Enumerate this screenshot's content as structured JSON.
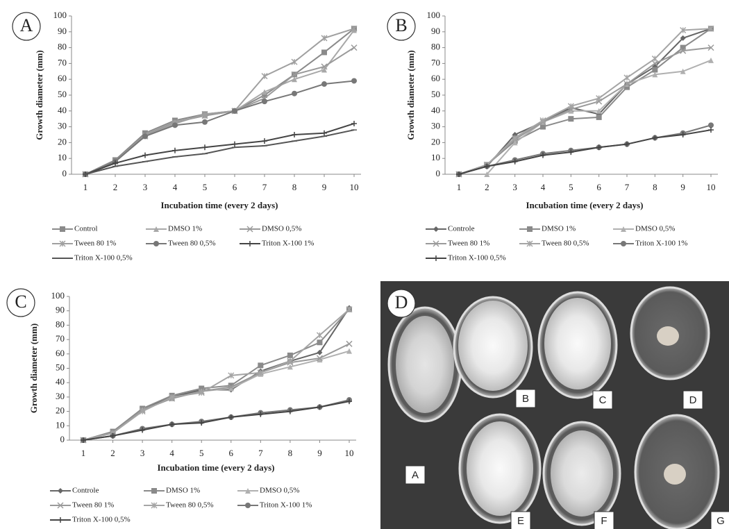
{
  "chart_data": [
    {
      "type": "line",
      "panel_label": "A",
      "y_label": "Growth diameter (mm)",
      "x_label": "Incubation  time (every 2 days)",
      "x": [
        1,
        2,
        3,
        4,
        5,
        6,
        7,
        8,
        9,
        10
      ],
      "xlim": [
        1,
        10
      ],
      "xticks": [
        1,
        2,
        3,
        4,
        5,
        6,
        7,
        8,
        9,
        10
      ],
      "ylim": [
        0,
        100
      ],
      "yticks": [
        0,
        10,
        20,
        30,
        40,
        50,
        60,
        70,
        80,
        90,
        100
      ],
      "series": [
        {
          "name": "Control",
          "color": "#8a8a8a",
          "marker": "square",
          "values": [
            0,
            9,
            26,
            34,
            38,
            40,
            50,
            63,
            77,
            92
          ]
        },
        {
          "name": "DMSO 1%",
          "color": "#a8a8a8",
          "marker": "triangle",
          "values": [
            0,
            8,
            24,
            33,
            37,
            40,
            52,
            60,
            66,
            91
          ]
        },
        {
          "name": "DMSO 0,5%",
          "color": "#9a9a9a",
          "marker": "x",
          "values": [
            0,
            8,
            25,
            33,
            37,
            40,
            48,
            63,
            68,
            80
          ]
        },
        {
          "name": "Tween 80 1%",
          "color": "#a0a0a0",
          "marker": "star",
          "values": [
            0,
            8,
            24,
            32,
            38,
            40,
            62,
            71,
            86,
            92
          ]
        },
        {
          "name": "Tween 80 0,5%",
          "color": "#777777",
          "marker": "circle",
          "values": [
            0,
            8,
            24,
            31,
            33,
            40,
            46,
            51,
            57,
            59
          ]
        },
        {
          "name": "Triton X-100 1%",
          "color": "#444444",
          "marker": "plus",
          "values": [
            0,
            7,
            12,
            15,
            17,
            19,
            21,
            25,
            26,
            32
          ]
        },
        {
          "name": "Triton X-100 0,5%",
          "color": "#555555",
          "marker": "dash",
          "values": [
            0,
            5,
            8,
            11,
            13,
            17,
            18,
            21,
            24,
            28
          ]
        }
      ]
    },
    {
      "type": "line",
      "panel_label": "B",
      "y_label": "Growth diameter (mm)",
      "x_label": "Incubation  time (every 2 days)",
      "x": [
        1,
        2,
        3,
        4,
        5,
        6,
        7,
        8,
        9,
        10
      ],
      "xlim": [
        1,
        10
      ],
      "xticks": [
        1,
        2,
        3,
        4,
        5,
        6,
        7,
        8,
        9,
        10
      ],
      "ylim": [
        0,
        100
      ],
      "yticks": [
        0,
        10,
        20,
        30,
        40,
        50,
        60,
        70,
        80,
        90,
        100
      ],
      "series": [
        {
          "name": "Controle",
          "color": "#666666",
          "marker": "diamond",
          "values": [
            0,
            5,
            25,
            33,
            42,
            38,
            57,
            68,
            86,
            92
          ]
        },
        {
          "name": "DMSO 1%",
          "color": "#8a8a8a",
          "marker": "square",
          "values": [
            0,
            6,
            21,
            30,
            35,
            36,
            55,
            66,
            80,
            92
          ]
        },
        {
          "name": "DMSO 0,5%",
          "color": "#b0b0b0",
          "marker": "triangle",
          "values": [
            0,
            0,
            20,
            33,
            40,
            40,
            57,
            63,
            65,
            72
          ]
        },
        {
          "name": "Tween 80 1%",
          "color": "#9a9a9a",
          "marker": "x",
          "values": [
            0,
            6,
            22,
            33,
            41,
            46,
            57,
            70,
            78,
            80
          ]
        },
        {
          "name": "Tween 80 0,5%",
          "color": "#a5a5a5",
          "marker": "star",
          "values": [
            0,
            6,
            23,
            34,
            43,
            48,
            61,
            73,
            91,
            92
          ]
        },
        {
          "name": "Triton X-100 1%",
          "color": "#777777",
          "marker": "circle",
          "values": [
            0,
            5,
            9,
            13,
            15,
            17,
            19,
            23,
            26,
            31
          ]
        },
        {
          "name": "Triton X-100 0,5%",
          "color": "#444444",
          "marker": "plus",
          "values": [
            0,
            5,
            8,
            12,
            14,
            17,
            19,
            23,
            25,
            28
          ]
        }
      ]
    },
    {
      "type": "line",
      "panel_label": "C",
      "y_label": "Growth diameter (mm)",
      "x_label": "Incubation  time (every 2 days)",
      "x": [
        1,
        2,
        3,
        4,
        5,
        6,
        7,
        8,
        9,
        10
      ],
      "xlim": [
        1,
        10
      ],
      "xticks": [
        1,
        2,
        3,
        4,
        5,
        6,
        7,
        8,
        9,
        10
      ],
      "ylim": [
        0,
        100
      ],
      "yticks": [
        0,
        10,
        20,
        30,
        40,
        50,
        60,
        70,
        80,
        90,
        100
      ],
      "series": [
        {
          "name": "Controle",
          "color": "#666666",
          "marker": "diamond",
          "values": [
            0,
            5,
            22,
            30,
            35,
            35,
            48,
            55,
            61,
            92
          ]
        },
        {
          "name": "DMSO 1%",
          "color": "#8a8a8a",
          "marker": "square",
          "values": [
            0,
            6,
            22,
            31,
            36,
            38,
            52,
            59,
            68,
            91
          ]
        },
        {
          "name": "DMSO 0,5%",
          "color": "#b0b0b0",
          "marker": "triangle",
          "values": [
            0,
            5,
            21,
            29,
            34,
            36,
            46,
            51,
            56,
            62
          ]
        },
        {
          "name": "Tween 80 1%",
          "color": "#9a9a9a",
          "marker": "x",
          "values": [
            0,
            5,
            21,
            29,
            34,
            37,
            47,
            54,
            57,
            67
          ]
        },
        {
          "name": "Tween 80 0,5%",
          "color": "#a5a5a5",
          "marker": "star",
          "values": [
            0,
            5,
            20,
            30,
            33,
            45,
            47,
            55,
            73,
            91
          ]
        },
        {
          "name": "Triton X-100 1%",
          "color": "#777777",
          "marker": "circle",
          "values": [
            0,
            3,
            8,
            11,
            13,
            16,
            19,
            21,
            23,
            28
          ]
        },
        {
          "name": "Triton X-100 0,5%",
          "color": "#444444",
          "marker": "plus",
          "values": [
            0,
            3,
            7,
            11,
            12,
            16,
            18,
            20,
            23,
            27
          ]
        }
      ]
    }
  ],
  "photo": {
    "panel_label": "D",
    "labels": [
      "A",
      "B",
      "C",
      "D",
      "E",
      "F",
      "G"
    ]
  }
}
